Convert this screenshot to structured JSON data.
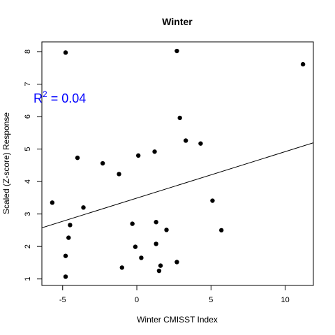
{
  "chart_data": {
    "type": "scatter",
    "title": "Winter",
    "xlabel": "Winter CMISST Index",
    "ylabel": "Scaled (Z-score) Response",
    "xlim": [
      -6.4,
      11.9
    ],
    "ylim": [
      0.8,
      8.3
    ],
    "x_ticks": [
      -5,
      0,
      5,
      10
    ],
    "y_ticks": [
      1,
      2,
      3,
      4,
      5,
      6,
      7,
      8
    ],
    "x_tick_labels": [
      "-5",
      "0",
      "5",
      "10"
    ],
    "y_tick_labels": [
      "1",
      "2",
      "3",
      "4",
      "5",
      "6",
      "7",
      "8"
    ],
    "points": [
      {
        "x": -4.8,
        "y": 7.97
      },
      {
        "x": 2.7,
        "y": 8.02
      },
      {
        "x": 11.2,
        "y": 7.61
      },
      {
        "x": 2.9,
        "y": 5.96
      },
      {
        "x": 3.3,
        "y": 5.26
      },
      {
        "x": 4.3,
        "y": 5.17
      },
      {
        "x": 1.2,
        "y": 4.92
      },
      {
        "x": 0.1,
        "y": 4.8
      },
      {
        "x": -4.0,
        "y": 4.73
      },
      {
        "x": -2.3,
        "y": 4.56
      },
      {
        "x": -1.2,
        "y": 4.23
      },
      {
        "x": -5.7,
        "y": 3.35
      },
      {
        "x": 5.1,
        "y": 3.41
      },
      {
        "x": -3.6,
        "y": 3.2
      },
      {
        "x": 1.3,
        "y": 2.75
      },
      {
        "x": -0.3,
        "y": 2.7
      },
      {
        "x": -4.5,
        "y": 2.66
      },
      {
        "x": 2.0,
        "y": 2.51
      },
      {
        "x": 5.7,
        "y": 2.5
      },
      {
        "x": -4.6,
        "y": 2.27
      },
      {
        "x": 1.3,
        "y": 2.08
      },
      {
        "x": -0.1,
        "y": 1.99
      },
      {
        "x": -4.8,
        "y": 1.71
      },
      {
        "x": 0.3,
        "y": 1.65
      },
      {
        "x": 2.7,
        "y": 1.52
      },
      {
        "x": 1.6,
        "y": 1.41
      },
      {
        "x": -1.0,
        "y": 1.35
      },
      {
        "x": 1.5,
        "y": 1.25
      },
      {
        "x": -4.8,
        "y": 1.07
      }
    ],
    "fit_line": {
      "intercept": 3.49,
      "slope": 0.143
    },
    "annotation": {
      "prefix": "R",
      "superscript": "2",
      "text": " = 0.04",
      "color": "#0000ff"
    },
    "point_color": "#000000",
    "line_color": "#000000"
  }
}
